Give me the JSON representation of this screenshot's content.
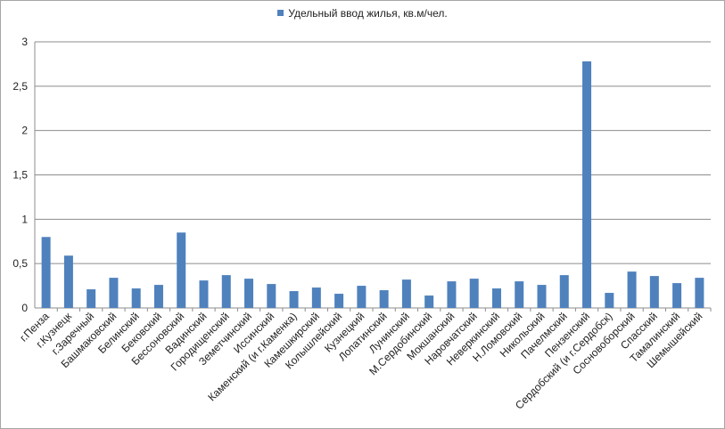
{
  "chart_data": {
    "type": "bar",
    "title": "",
    "xlabel": "",
    "ylabel": "",
    "ylim": [
      0,
      3
    ],
    "yticks": [
      "0",
      "0,5",
      "1",
      "1,5",
      "2",
      "2,5",
      "3"
    ],
    "grid": true,
    "legend": "top-center",
    "bar_color": "#4f81bd",
    "categories": [
      "г.Пенза",
      "г.Кузнецк",
      "г.Заречный",
      "Башмаковский",
      "Белинский",
      "Бековский",
      "Бессоновский",
      "Вадинский",
      "Городищенский",
      "Земетчинский",
      "Иссинский",
      "Каменский (и г.Каменка)",
      "Камешкирский",
      "Колышлейский",
      "Кузнецкий",
      "Лопатинский",
      "Лунинский",
      "М.Сердобинский",
      "Мокшанский",
      "Наровчатский",
      "Неверкинский",
      "Н.Ломовский",
      "Никольский",
      "Пачелмский",
      "Пензенский",
      "Сердобский (и г.Сердобск)",
      "Сосновоборский",
      "Спасский",
      "Тамалинский",
      "Шемышейский"
    ],
    "series": [
      {
        "name": "Удельный ввод жилья, кв.м/чел.",
        "values": [
          0.8,
          0.59,
          0.21,
          0.34,
          0.22,
          0.26,
          0.85,
          0.31,
          0.37,
          0.33,
          0.27,
          0.19,
          0.23,
          0.16,
          0.25,
          0.2,
          0.32,
          0.14,
          0.3,
          0.33,
          0.22,
          0.3,
          0.26,
          0.37,
          2.78,
          0.17,
          0.41,
          0.36,
          0.28,
          0.34
        ]
      }
    ]
  }
}
